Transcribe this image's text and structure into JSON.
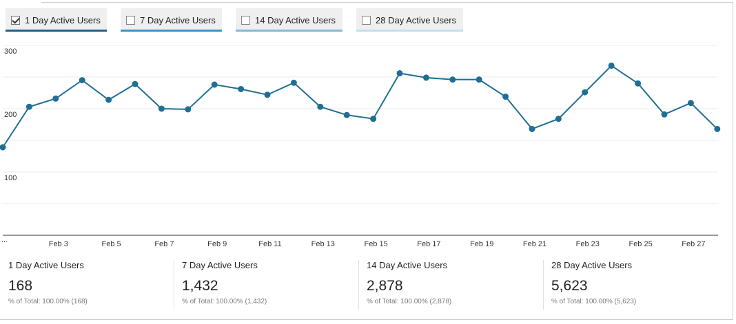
{
  "tabs": [
    {
      "label": "1 Day Active Users",
      "checked": true,
      "underline_color": "#1f5f8b"
    },
    {
      "label": "7 Day Active Users",
      "checked": false,
      "underline_color": "#3a92c8"
    },
    {
      "label": "14 Day Active Users",
      "checked": false,
      "underline_color": "#7fbad8"
    },
    {
      "label": "28 Day Active Users",
      "checked": false,
      "underline_color": "#bfe0ef"
    }
  ],
  "chart_data": {
    "type": "line",
    "x": [
      "Feb 1",
      "Feb 2",
      "Feb 3",
      "Feb 4",
      "Feb 5",
      "Feb 6",
      "Feb 7",
      "Feb 8",
      "Feb 9",
      "Feb 10",
      "Feb 11",
      "Feb 12",
      "Feb 13",
      "Feb 14",
      "Feb 15",
      "Feb 16",
      "Feb 17",
      "Feb 18",
      "Feb 19",
      "Feb 20",
      "Feb 21",
      "Feb 22",
      "Feb 23",
      "Feb 24",
      "Feb 25",
      "Feb 26",
      "Feb 27",
      "Feb 28"
    ],
    "series": [
      {
        "values": [
          139,
          203,
          216,
          245,
          214,
          239,
          200,
          199,
          238,
          231,
          222,
          241,
          203,
          190,
          184,
          256,
          249,
          246,
          246,
          219,
          168,
          184,
          226,
          268,
          240,
          191,
          209,
          168
        ]
      }
    ],
    "x_tick_labels": [
      "Feb 3",
      "Feb 5",
      "Feb 7",
      "Feb 9",
      "Feb 11",
      "Feb 13",
      "Feb 15",
      "Feb 17",
      "Feb 19",
      "Feb 21",
      "Feb 23",
      "Feb 25",
      "Feb 27"
    ],
    "y_tick_labels": [
      "100",
      "200",
      "300"
    ],
    "ylim": [
      0,
      300
    ],
    "grid": true,
    "line_color": "#1f6e96"
  },
  "stats": [
    {
      "label": "1 Day Active Users",
      "value": "168",
      "sub": "% of Total: 100.00% (168)"
    },
    {
      "label": "7 Day Active Users",
      "value": "1,432",
      "sub": "% of Total: 100.00% (1,432)"
    },
    {
      "label": "14 Day Active Users",
      "value": "2,878",
      "sub": "% of Total: 100.00% (2,878)"
    },
    {
      "label": "28 Day Active Users",
      "value": "5,623",
      "sub": "% of Total: 100.00% (5,623)"
    }
  ]
}
